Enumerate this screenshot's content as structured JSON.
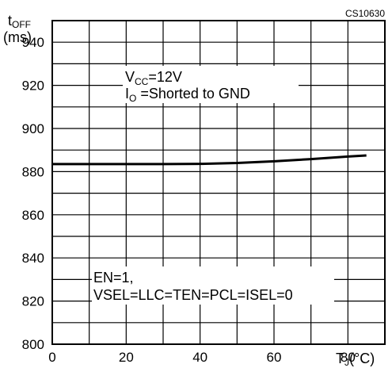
{
  "chart_data": {
    "type": "line",
    "code": "CS10630",
    "y_axis": {
      "label_main": "t",
      "label_sub": "OFF",
      "unit": "(ms)"
    },
    "x_axis": {
      "label_main": "T",
      "label_sub": "J",
      "unit": "(°C)"
    },
    "xlim": [
      0,
      90
    ],
    "ylim": [
      800,
      950
    ],
    "x_ticks": [
      0,
      20,
      40,
      60,
      80
    ],
    "y_ticks": [
      800,
      820,
      840,
      860,
      880,
      900,
      920,
      940
    ],
    "grid": true,
    "annotation_top": {
      "line1_main": "V",
      "line1_sub": "CC",
      "line1_rest": "=12V",
      "line2_main": "I",
      "line2_sub": "O",
      "line2_rest": " =Shorted to GND"
    },
    "annotation_bottom": {
      "line1": "EN=1,",
      "line2": "VSEL=LLC=TEN=PCL=ISEL=0"
    },
    "series": [
      {
        "x": [
          0,
          10,
          20,
          30,
          40,
          50,
          60,
          70,
          80,
          85
        ],
        "y": [
          883.5,
          883.5,
          883.5,
          883.5,
          883.6,
          884.0,
          884.8,
          885.8,
          887.0,
          887.5
        ]
      }
    ]
  }
}
